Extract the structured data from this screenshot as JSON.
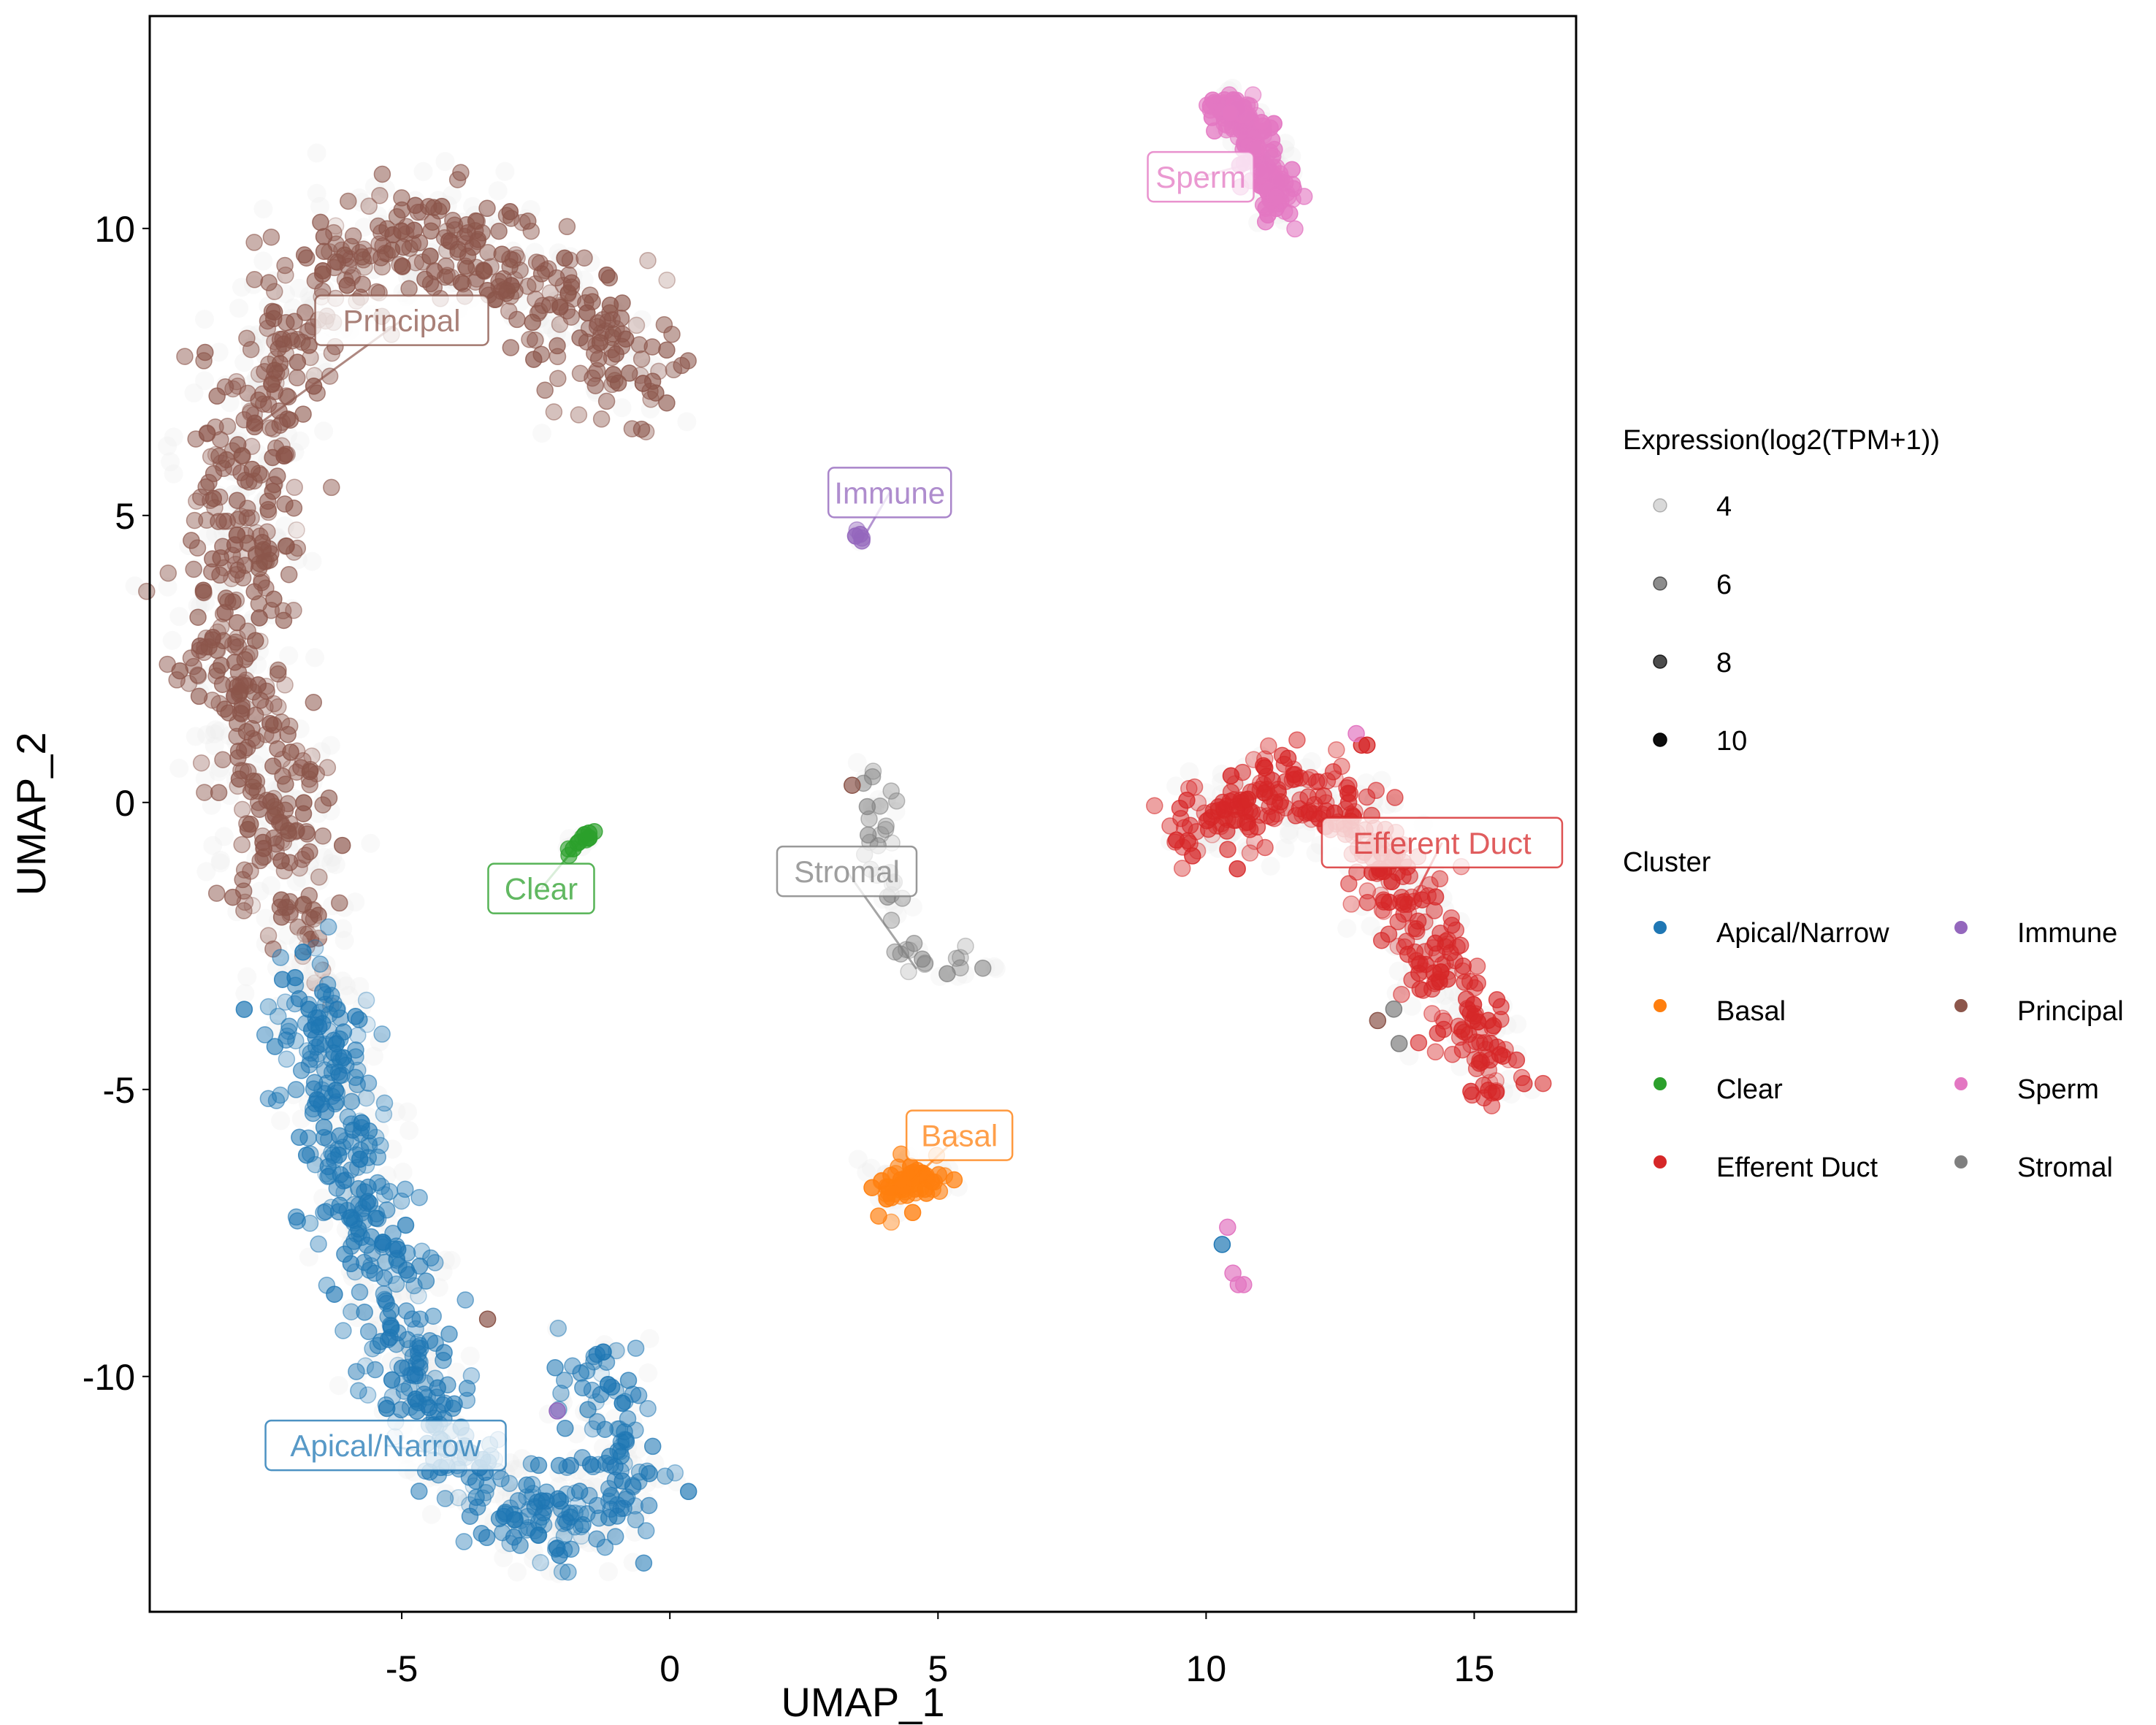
{
  "chart_data": {
    "type": "scatter",
    "title": "",
    "xlabel": "UMAP_1",
    "ylabel": "UMAP_2",
    "xlim": [
      -9.7,
      16.9
    ],
    "ylim": [
      -14.1,
      13.7
    ],
    "x_ticks": [
      -5,
      0,
      5,
      10,
      15
    ],
    "y_ticks": [
      -10,
      -5,
      0,
      5,
      10
    ],
    "grid": false,
    "legend_placement": "right",
    "size_legend": {
      "title": "Expression(log2(TPM+1))",
      "values": [
        4,
        6,
        8,
        10
      ],
      "labels": [
        "4",
        "6",
        "8",
        "10"
      ],
      "alphas": [
        0.15,
        0.45,
        0.7,
        0.95
      ]
    },
    "color_legend": {
      "title": "Cluster",
      "entries": [
        {
          "name": "Apical/Narrow",
          "color": "#1f77b4"
        },
        {
          "name": "Basal",
          "color": "#ff7f0e"
        },
        {
          "name": "Clear",
          "color": "#2ca02c"
        },
        {
          "name": "Efferent Duct",
          "color": "#d62728"
        },
        {
          "name": "Immune",
          "color": "#9467bd"
        },
        {
          "name": "Principal",
          "color": "#8c564b"
        },
        {
          "name": "Sperm",
          "color": "#e377c2"
        },
        {
          "name": "Stromal",
          "color": "#7f7f7f"
        }
      ]
    },
    "clusters": [
      {
        "name": "Principal",
        "color": "#8c564b",
        "label": {
          "text": "Principal",
          "x": -5.0,
          "y": 8.4
        },
        "path": [
          [
            -0.6,
            7.3
          ],
          [
            -1.2,
            8.0
          ],
          [
            -2.2,
            8.9
          ],
          [
            -3.5,
            9.6
          ],
          [
            -4.8,
            9.8
          ],
          [
            -6.2,
            9.3
          ],
          [
            -7.2,
            8.2
          ],
          [
            -7.8,
            6.5
          ],
          [
            -8.1,
            4.5
          ],
          [
            -8.3,
            2.8
          ],
          [
            -7.8,
            1.2
          ],
          [
            -7.3,
            -0.2
          ],
          [
            -7.0,
            -1.5
          ],
          [
            -6.8,
            -2.5
          ]
        ],
        "spread": 0.55,
        "count": 700,
        "expr_mean": 6.5
      },
      {
        "name": "Apical/Narrow",
        "color": "#1f77b4",
        "label": {
          "text": "Apical/Narrow",
          "x": -5.3,
          "y": -11.2
        },
        "path": [
          [
            -6.7,
            -2.8
          ],
          [
            -6.5,
            -4.0
          ],
          [
            -6.2,
            -5.5
          ],
          [
            -5.8,
            -7.0
          ],
          [
            -5.3,
            -8.5
          ],
          [
            -4.8,
            -10.0
          ],
          [
            -4.0,
            -11.4
          ],
          [
            -3.0,
            -12.3
          ],
          [
            -2.0,
            -12.6
          ],
          [
            -1.0,
            -12.2
          ],
          [
            -1.2,
            -10.8
          ],
          [
            -1.3,
            -9.9
          ]
        ],
        "spread": 0.45,
        "count": 550,
        "expr_mean": 6.0
      },
      {
        "name": "Efferent Duct",
        "color": "#d62728",
        "label": {
          "text": "Efferent Duct",
          "x": 14.4,
          "y": -0.7
        },
        "path": [
          [
            9.6,
            -0.5
          ],
          [
            10.5,
            -0.1
          ],
          [
            11.5,
            0.2
          ],
          [
            12.5,
            0.0
          ],
          [
            13.2,
            -0.8
          ],
          [
            13.8,
            -1.8
          ],
          [
            14.3,
            -2.8
          ],
          [
            14.9,
            -3.8
          ],
          [
            15.3,
            -4.5
          ],
          [
            15.5,
            -4.9
          ]
        ],
        "spread": 0.35,
        "count": 350,
        "expr_mean": 6.5
      },
      {
        "name": "Sperm",
        "color": "#e377c2",
        "label": {
          "text": "Sperm",
          "x": 9.9,
          "y": 10.9
        },
        "path": [
          [
            10.2,
            12.1
          ],
          [
            10.6,
            12.0
          ],
          [
            10.9,
            11.7
          ],
          [
            11.1,
            11.2
          ],
          [
            11.3,
            10.7
          ],
          [
            11.4,
            10.3
          ]
        ],
        "spread": 0.18,
        "count": 160,
        "expr_mean": 8.5
      },
      {
        "name": "Basal",
        "color": "#ff7f0e",
        "label": {
          "text": "Basal",
          "x": 5.4,
          "y": -5.8
        },
        "path": [
          [
            4.0,
            -6.7
          ],
          [
            4.5,
            -6.6
          ],
          [
            5.0,
            -6.5
          ]
        ],
        "spread": 0.2,
        "count": 60,
        "expr_mean": 8.0
      },
      {
        "name": "Clear",
        "color": "#2ca02c",
        "label": {
          "text": "Clear",
          "x": -2.4,
          "y": -1.5
        },
        "path": [
          [
            -1.9,
            -0.9
          ],
          [
            -1.6,
            -0.6
          ],
          [
            -1.4,
            -0.5
          ]
        ],
        "spread": 0.05,
        "count": 12,
        "expr_mean": 8.0
      },
      {
        "name": "Immune",
        "color": "#9467bd",
        "label": {
          "text": "Immune",
          "x": 4.1,
          "y": 5.4
        },
        "path": [
          [
            3.4,
            4.8
          ],
          [
            3.6,
            4.6
          ],
          [
            3.7,
            4.55
          ]
        ],
        "spread": 0.04,
        "count": 5,
        "expr_mean": 8.0
      },
      {
        "name": "Stromal",
        "color": "#7f7f7f",
        "label": {
          "text": "Stromal",
          "x": 3.3,
          "y": -1.2
        },
        "path": [
          [
            3.5,
            0.7
          ],
          [
            3.8,
            0.3
          ],
          [
            3.8,
            -0.4
          ],
          [
            4.6,
            -2.9
          ],
          [
            5.2,
            -3.0
          ],
          [
            5.8,
            -3.0
          ],
          [
            6.1,
            -3.1
          ]
        ],
        "spread": 0.18,
        "count": 40,
        "expr_mean": 5.5
      }
    ],
    "outliers": [
      {
        "x": -0.5,
        "y": 7.3,
        "cluster": "Principal"
      },
      {
        "x": -3.4,
        "y": -9.0,
        "cluster": "Principal"
      },
      {
        "x": -2.1,
        "y": -10.6,
        "cluster": "Immune"
      },
      {
        "x": 10.4,
        "y": -7.4,
        "cluster": "Sperm"
      },
      {
        "x": 10.3,
        "y": -7.7,
        "cluster": "Apical/Narrow"
      },
      {
        "x": 10.5,
        "y": -8.2,
        "cluster": "Sperm"
      },
      {
        "x": 10.6,
        "y": -8.4,
        "cluster": "Sperm"
      },
      {
        "x": 10.7,
        "y": -8.4,
        "cluster": "Sperm"
      },
      {
        "x": 12.9,
        "y": 1.0,
        "cluster": "Efferent Duct"
      },
      {
        "x": 12.8,
        "y": 1.2,
        "cluster": "Sperm"
      },
      {
        "x": 13.0,
        "y": 1.0,
        "cluster": "Efferent Duct"
      },
      {
        "x": 13.2,
        "y": -3.8,
        "cluster": "Principal"
      },
      {
        "x": 13.5,
        "y": -3.6,
        "cluster": "Stromal"
      },
      {
        "x": 13.6,
        "y": -4.2,
        "cluster": "Stromal"
      },
      {
        "x": 3.4,
        "y": 0.3,
        "cluster": "Principal"
      }
    ]
  }
}
